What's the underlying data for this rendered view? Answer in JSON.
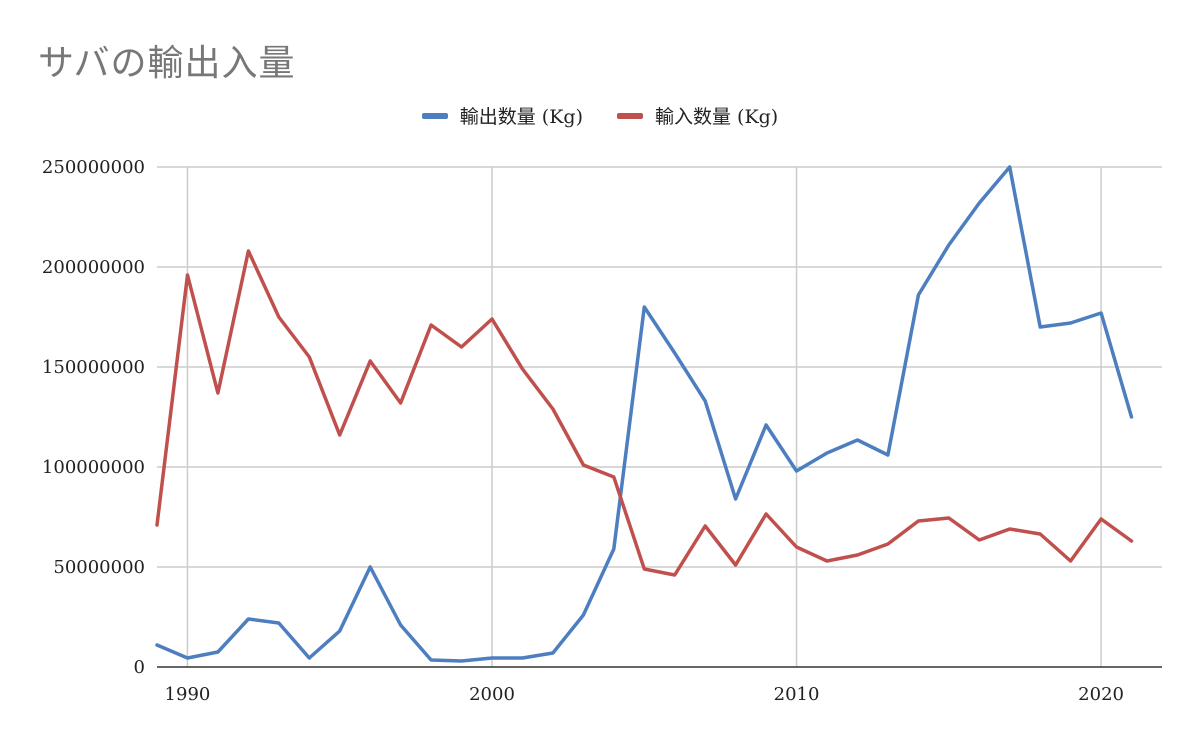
{
  "chart_data": {
    "type": "line",
    "title": "サバの輸出入量",
    "xlabel": "",
    "ylabel": "",
    "x": [
      1989,
      1990,
      1991,
      1992,
      1993,
      1994,
      1995,
      1996,
      1997,
      1998,
      1999,
      2000,
      2001,
      2002,
      2003,
      2004,
      2005,
      2006,
      2007,
      2008,
      2009,
      2010,
      2011,
      2012,
      2013,
      2014,
      2015,
      2016,
      2017,
      2018,
      2019,
      2020,
      2021
    ],
    "xlim": [
      1989,
      2022
    ],
    "ylim": [
      0,
      250000000
    ],
    "x_ticks": [
      "1990",
      "2000",
      "2010",
      "2020"
    ],
    "y_ticks": [
      "0",
      "50000000",
      "100000000",
      "150000000",
      "200000000",
      "250000000"
    ],
    "grid": true,
    "legend_position": "top",
    "series": [
      {
        "name": "輸出数量 (Kg)",
        "color": "#4d7ebf",
        "values": [
          11000000,
          4500000,
          7500000,
          24000000,
          22000000,
          4500000,
          18000000,
          50000000,
          21000000,
          3500000,
          3000000,
          4500000,
          4500000,
          7000000,
          26000000,
          59000000,
          180000000,
          157000000,
          133000000,
          84000000,
          121000000,
          98000000,
          107000000,
          113500000,
          106000000,
          186000000,
          211000000,
          232000000,
          250000000,
          170000000,
          172000000,
          177000000,
          125000000
        ]
      },
      {
        "name": "輸入数量 (Kg)",
        "color": "#c0504d",
        "values": [
          71000000,
          196000000,
          137000000,
          208000000,
          175000000,
          155000000,
          116000000,
          153000000,
          132000000,
          171000000,
          160000000,
          174000000,
          149000000,
          129000000,
          101000000,
          95000000,
          49000000,
          46000000,
          70500000,
          51000000,
          76500000,
          60000000,
          53000000,
          56000000,
          61500000,
          73000000,
          74500000,
          63500000,
          69000000,
          66500000,
          53000000,
          74000000,
          63000000
        ]
      }
    ]
  }
}
